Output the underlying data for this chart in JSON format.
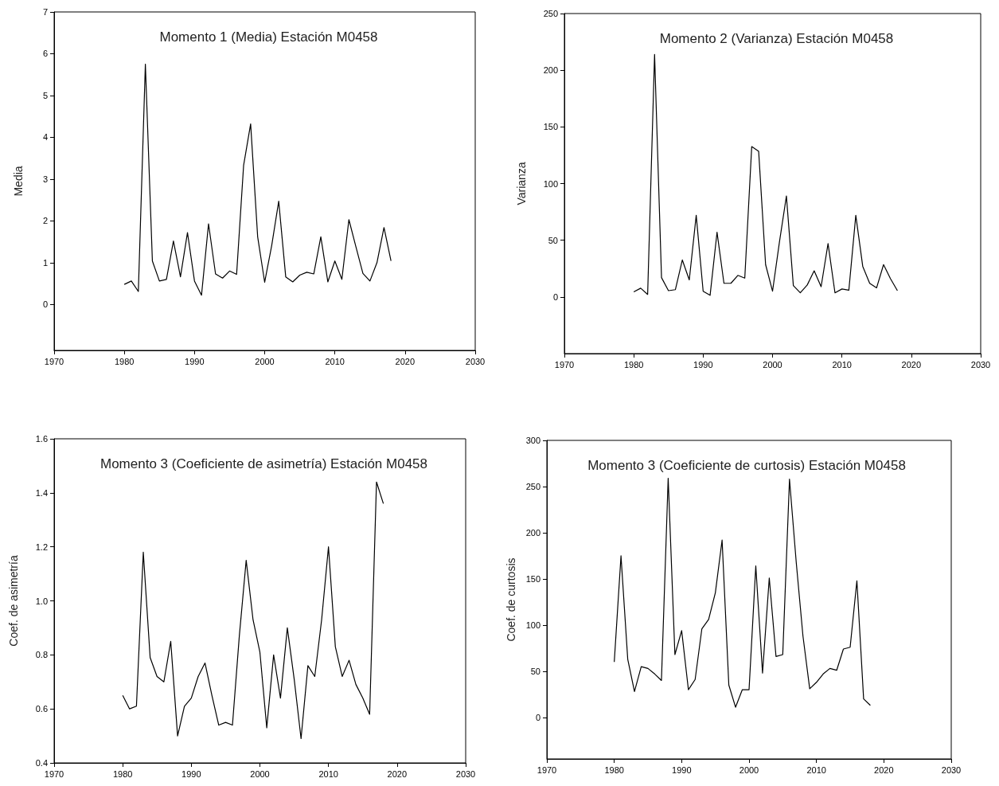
{
  "chart_data": [
    {
      "type": "line",
      "title": "Momento 1 (Media) Estación M0458",
      "ylabel": "Media",
      "x": [
        1980,
        1981,
        1982,
        1983,
        1984,
        1985,
        1986,
        1987,
        1988,
        1989,
        1990,
        1991,
        1992,
        1993,
        1994,
        1995,
        1996,
        1997,
        1998,
        1999,
        2000,
        2001,
        2002,
        2003,
        2004,
        2005,
        2006,
        2007,
        2008,
        2009,
        2010,
        2011,
        2012,
        2013,
        2014,
        2015,
        2016,
        2017,
        2018
      ],
      "series": [
        {
          "color": "#000000",
          "values": [
            0.48,
            0.56,
            0.31,
            5.75,
            1.04,
            0.56,
            0.6,
            1.52,
            0.66,
            1.72,
            0.56,
            0.22,
            1.93,
            0.73,
            0.63,
            0.8,
            0.72,
            3.33,
            4.32,
            1.62,
            0.53,
            1.41,
            2.47,
            0.66,
            0.54,
            0.7,
            0.77,
            0.73,
            1.62,
            0.54,
            1.04,
            0.6,
            2.03,
            1.38,
            0.74,
            0.56,
            1.0,
            1.84,
            1.04
          ]
        }
      ],
      "xlim": [
        1970,
        2030
      ],
      "xticks": [
        1970,
        1980,
        1990,
        2000,
        2010,
        2020,
        2030
      ],
      "ylim": [
        -1.1,
        7
      ],
      "yticks": [
        0,
        1,
        2,
        3,
        4,
        5,
        6,
        7
      ],
      "marker": "none",
      "line_style": "solid"
    },
    {
      "type": "line",
      "title": "Momento 2 (Varianza) Estación M0458",
      "ylabel": "Varianza",
      "x": [
        1980,
        1981,
        1982,
        1983,
        1984,
        1985,
        1986,
        1987,
        1988,
        1989,
        1990,
        1991,
        1992,
        1993,
        1994,
        1995,
        1996,
        1997,
        1998,
        1999,
        2000,
        2001,
        2002,
        2003,
        2004,
        2005,
        2006,
        2007,
        2008,
        2009,
        2010,
        2011,
        2012,
        2013,
        2014,
        2015,
        2016,
        2017,
        2018
      ],
      "series": [
        {
          "color": "#000000",
          "values": [
            4.4,
            7.7,
            2.2,
            214,
            17,
            5.5,
            6.4,
            32.6,
            15,
            72,
            5,
            1.4,
            57,
            12,
            12,
            19,
            16.6,
            132.6,
            128.5,
            28.5,
            5,
            48.6,
            89,
            10,
            3.6,
            10.5,
            23,
            9,
            47,
            3.6,
            7,
            6,
            72,
            27,
            12,
            8,
            28.5,
            16,
            5.5
          ]
        }
      ],
      "xlim": [
        1970,
        2030
      ],
      "xticks": [
        1970,
        1980,
        1990,
        2000,
        2010,
        2020,
        2030
      ],
      "ylim": [
        -50,
        250
      ],
      "yticks": [
        0,
        50,
        100,
        150,
        200,
        250
      ],
      "marker": "none",
      "line_style": "solid"
    },
    {
      "type": "line",
      "title": "Momento 3 (Coeficiente de asimetría) Estación M0458",
      "ylabel": "Coef. de asimetría",
      "x": [
        1980,
        1981,
        1982,
        1983,
        1984,
        1985,
        1986,
        1987,
        1988,
        1989,
        1990,
        1991,
        1992,
        1993,
        1994,
        1995,
        1996,
        1997,
        1998,
        1999,
        2000,
        2001,
        2002,
        2003,
        2004,
        2005,
        2006,
        2007,
        2008,
        2009,
        2010,
        2011,
        2012,
        2013,
        2014,
        2015,
        2016,
        2017,
        2018
      ],
      "series": [
        {
          "color": "#000000",
          "values": [
            0.65,
            0.6,
            0.61,
            1.18,
            0.79,
            0.72,
            0.7,
            0.85,
            0.5,
            0.61,
            0.64,
            0.72,
            0.77,
            0.65,
            0.54,
            0.55,
            0.54,
            0.87,
            1.15,
            0.93,
            0.81,
            0.53,
            0.8,
            0.64,
            0.9,
            0.71,
            0.49,
            0.76,
            0.72,
            0.93,
            1.2,
            0.83,
            0.72,
            0.78,
            0.69,
            0.64,
            0.58,
            1.44,
            1.36
          ]
        }
      ],
      "xlim": [
        1970,
        2030
      ],
      "xticks": [
        1970,
        1980,
        1990,
        2000,
        2010,
        2020,
        2030
      ],
      "ylim": [
        0.4,
        1.6
      ],
      "yticks": [
        0.4,
        0.6,
        0.8,
        {
          "value": 1,
          "label": "1.0"
        },
        1.2,
        1.4,
        1.6
      ],
      "marker": "none",
      "line_style": "solid"
    },
    {
      "type": "line",
      "title": "Momento 3 (Coeficiente de curtosis) Estación M0458",
      "ylabel": "Coef. de curtosis",
      "x": [
        1980,
        1981,
        1982,
        1983,
        1984,
        1985,
        1986,
        1987,
        1988,
        1989,
        1990,
        1991,
        1992,
        1993,
        1994,
        1995,
        1996,
        1997,
        1998,
        1999,
        2000,
        2001,
        2002,
        2003,
        2004,
        2005,
        2006,
        2007,
        2008,
        2009,
        2010,
        2011,
        2012,
        2013,
        2014,
        2015,
        2016,
        2017,
        2018
      ],
      "series": [
        {
          "color": "#000000",
          "values": [
            60,
            175,
            63,
            28,
            55,
            53,
            47,
            40,
            259,
            68,
            94,
            30,
            41,
            96,
            106,
            135,
            192,
            35,
            11,
            30,
            30,
            164,
            48,
            151,
            66,
            68,
            258,
            168,
            88,
            31,
            38,
            47,
            53,
            51,
            74,
            76,
            148,
            20,
            13
          ]
        }
      ],
      "xlim": [
        1970,
        2030
      ],
      "xticks": [
        1970,
        1980,
        1990,
        2000,
        2010,
        2020,
        2030
      ],
      "ylim": [
        -45,
        300
      ],
      "yticks": [
        0,
        50,
        100,
        150,
        200,
        250,
        300
      ],
      "marker": "none",
      "line_style": "solid"
    }
  ]
}
